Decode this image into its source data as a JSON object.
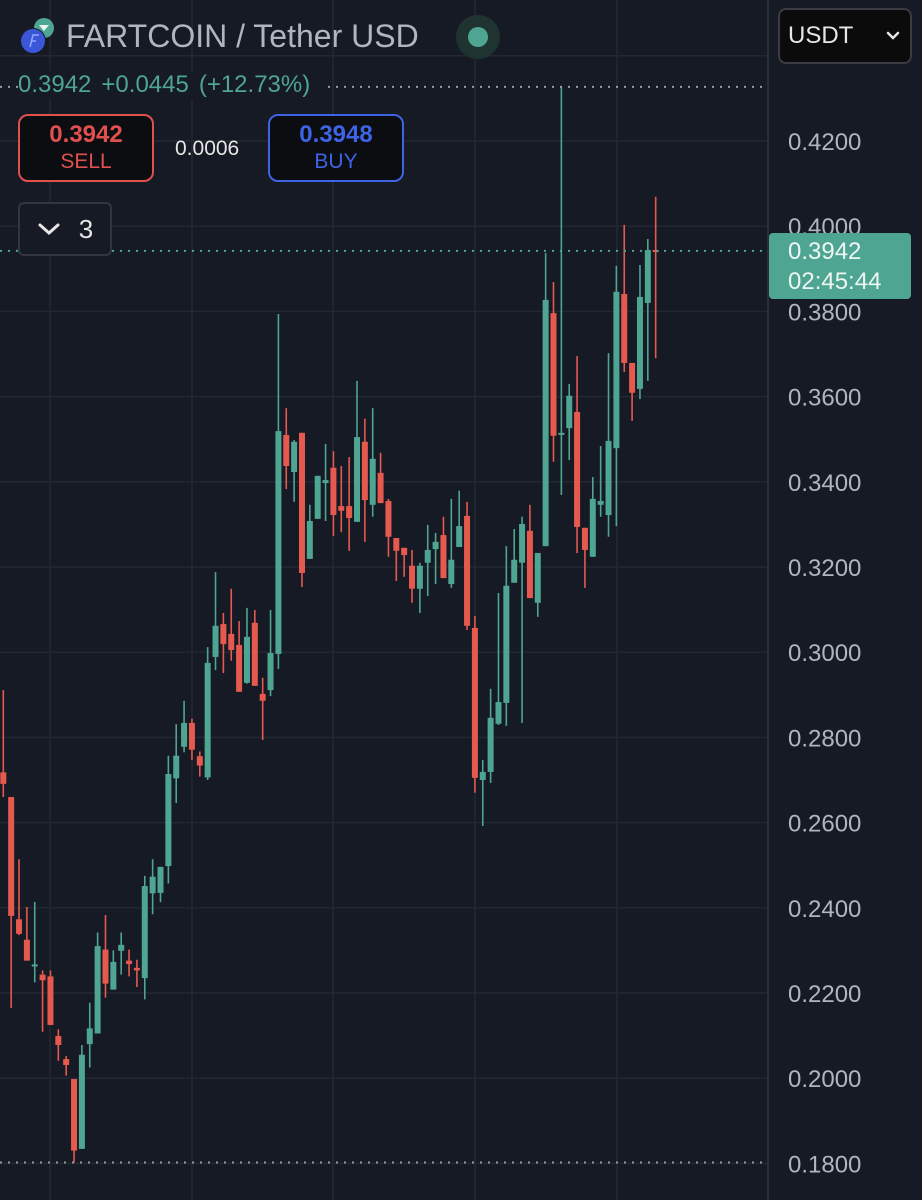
{
  "header": {
    "symbol_title": "FARTCOIN / Tether USD",
    "last_price": "0.3942",
    "change": "+0.0445",
    "change_pct": "(+12.73%)",
    "live_icon": "market-open-dot-icon"
  },
  "trade": {
    "sell_price": "0.3942",
    "sell_label": "SELL",
    "spread": "0.0006",
    "buy_price": "0.3948",
    "buy_label": "BUY"
  },
  "indicators_toggle": {
    "count": "3",
    "icon": "chevron-down-icon"
  },
  "currency_select": {
    "value": "USDT",
    "icon": "chevron-down-icon"
  },
  "price_tag": {
    "price": "0.3942",
    "countdown": "02:45:44"
  },
  "colors": {
    "up": "#4ea592",
    "down": "#e5594f",
    "background": "#161a25",
    "grid": "#232733",
    "sell": "#e0504f",
    "buy": "#3d63e6"
  },
  "chart_data": {
    "type": "candlestick",
    "title": "FARTCOIN / Tether USD",
    "ylabel": "USDT",
    "ylim": [
      0.18,
      0.42
    ],
    "yticks": [
      "0.4200",
      "0.4000",
      "0.3800",
      "0.3600",
      "0.3400",
      "0.3200",
      "0.3000",
      "0.2800",
      "0.2600",
      "0.2400",
      "0.2200",
      "0.2000",
      "0.1800"
    ],
    "range_high": 0.4327,
    "range_low": 0.1802,
    "current": 0.3942,
    "ohlc": [
      [
        0.2718,
        0.2911,
        0.266,
        0.2691
      ],
      [
        0.266,
        0.266,
        0.2165,
        0.2381
      ],
      [
        0.2373,
        0.2514,
        0.2336,
        0.2339
      ],
      [
        0.2325,
        0.2402,
        0.2276,
        0.2276
      ],
      [
        0.2265,
        0.2414,
        0.2225,
        0.2267
      ],
      [
        0.2243,
        0.2253,
        0.2109,
        0.223
      ],
      [
        0.2239,
        0.2253,
        0.2125,
        0.2125
      ],
      [
        0.2099,
        0.2115,
        0.2041,
        0.2078
      ],
      [
        0.2045,
        0.2052,
        0.2006,
        0.2031
      ],
      [
        0.1998,
        0.1998,
        0.1802,
        0.183
      ],
      [
        0.1834,
        0.2078,
        0.1834,
        0.2055
      ],
      [
        0.208,
        0.2177,
        0.2025,
        0.2117
      ],
      [
        0.2105,
        0.2342,
        0.2105,
        0.231
      ],
      [
        0.2302,
        0.2383,
        0.2189,
        0.2222
      ],
      [
        0.2208,
        0.23,
        0.2208,
        0.2273
      ],
      [
        0.2299,
        0.2342,
        0.2243,
        0.2313
      ],
      [
        0.2276,
        0.2302,
        0.2239,
        0.2268
      ],
      [
        0.2259,
        0.2278,
        0.2214,
        0.2253
      ],
      [
        0.2235,
        0.2475,
        0.2185,
        0.2451
      ],
      [
        0.2434,
        0.2514,
        0.2385,
        0.2473
      ],
      [
        0.2435,
        0.2496,
        0.2413,
        0.2496
      ],
      [
        0.2498,
        0.2757,
        0.2457,
        0.2714
      ],
      [
        0.2704,
        0.2831,
        0.2646,
        0.2757
      ],
      [
        0.2778,
        0.2886,
        0.2765,
        0.2834
      ],
      [
        0.2834,
        0.2844,
        0.2747,
        0.2771
      ],
      [
        0.2756,
        0.2767,
        0.2708,
        0.2734
      ],
      [
        0.2706,
        0.3012,
        0.27,
        0.2975
      ],
      [
        0.2989,
        0.3188,
        0.2958,
        0.3062
      ],
      [
        0.3066,
        0.3092,
        0.2951,
        0.3019
      ],
      [
        0.3043,
        0.3149,
        0.298,
        0.3005
      ],
      [
        0.3017,
        0.3073,
        0.2907,
        0.2907
      ],
      [
        0.2928,
        0.3104,
        0.2926,
        0.3036
      ],
      [
        0.3069,
        0.3099,
        0.2921,
        0.2921
      ],
      [
        0.2902,
        0.294,
        0.2794,
        0.2886
      ],
      [
        0.2911,
        0.3099,
        0.2897,
        0.2998
      ],
      [
        0.2996,
        0.3794,
        0.2961,
        0.3519
      ],
      [
        0.351,
        0.3573,
        0.3383,
        0.3437
      ],
      [
        0.3423,
        0.3498,
        0.3353,
        0.3494
      ],
      [
        0.3515,
        0.3515,
        0.3153,
        0.3186
      ],
      [
        0.3219,
        0.3346,
        0.3219,
        0.3308
      ],
      [
        0.3313,
        0.3414,
        0.3313,
        0.3414
      ],
      [
        0.3397,
        0.3489,
        0.3308,
        0.3404
      ],
      [
        0.3433,
        0.3472,
        0.3273,
        0.3322
      ],
      [
        0.3343,
        0.3437,
        0.3282,
        0.3332
      ],
      [
        0.3343,
        0.3458,
        0.3238,
        0.3315
      ],
      [
        0.3306,
        0.3637,
        0.3306,
        0.3505
      ],
      [
        0.3494,
        0.3548,
        0.3259,
        0.3357
      ],
      [
        0.3346,
        0.3573,
        0.3318,
        0.3454
      ],
      [
        0.3421,
        0.3468,
        0.335,
        0.335
      ],
      [
        0.3355,
        0.336,
        0.3224,
        0.3271
      ],
      [
        0.3268,
        0.3268,
        0.3167,
        0.3238
      ],
      [
        0.3245,
        0.3245,
        0.3177,
        0.3228
      ],
      [
        0.3203,
        0.324,
        0.3116,
        0.3149
      ],
      [
        0.3149,
        0.321,
        0.3092,
        0.3203
      ],
      [
        0.321,
        0.3299,
        0.3132,
        0.324
      ],
      [
        0.3242,
        0.328,
        0.316,
        0.3259
      ],
      [
        0.3275,
        0.3318,
        0.3174,
        0.3174
      ],
      [
        0.316,
        0.336,
        0.3151,
        0.3217
      ],
      [
        0.3247,
        0.3379,
        0.3247,
        0.3296
      ],
      [
        0.332,
        0.3353,
        0.3052,
        0.3062
      ],
      [
        0.3057,
        0.3085,
        0.267,
        0.2705
      ],
      [
        0.27,
        0.2747,
        0.2592,
        0.2719
      ],
      [
        0.2719,
        0.2914,
        0.2693,
        0.2846
      ],
      [
        0.2832,
        0.3139,
        0.2829,
        0.2883
      ],
      [
        0.2881,
        0.3249,
        0.2827,
        0.3156
      ],
      [
        0.3163,
        0.3289,
        0.3163,
        0.3217
      ],
      [
        0.321,
        0.3318,
        0.2834,
        0.3301
      ],
      [
        0.3285,
        0.3346,
        0.3127,
        0.3127
      ],
      [
        0.3116,
        0.3233,
        0.3083,
        0.3233
      ],
      [
        0.3249,
        0.3937,
        0.3249,
        0.3827
      ],
      [
        0.3796,
        0.3869,
        0.3447,
        0.3508
      ],
      [
        0.351,
        0.4327,
        0.3369,
        0.3515
      ],
      [
        0.3526,
        0.363,
        0.3451,
        0.3602
      ],
      [
        0.3564,
        0.3695,
        0.3233,
        0.3294
      ],
      [
        0.3292,
        0.3292,
        0.3151,
        0.324
      ],
      [
        0.3224,
        0.3411,
        0.3224,
        0.336
      ],
      [
        0.3346,
        0.3484,
        0.3318,
        0.3355
      ],
      [
        0.3322,
        0.3702,
        0.3271,
        0.3496
      ],
      [
        0.3479,
        0.3907,
        0.3296,
        0.3846
      ],
      [
        0.3841,
        0.4003,
        0.3658,
        0.3679
      ],
      [
        0.3679,
        0.3679,
        0.3543,
        0.3609
      ],
      [
        0.3618,
        0.3909,
        0.3594,
        0.3834
      ],
      [
        0.382,
        0.397,
        0.3637,
        0.3944
      ],
      [
        0.3944,
        0.4069,
        0.369,
        0.3942
      ]
    ]
  }
}
